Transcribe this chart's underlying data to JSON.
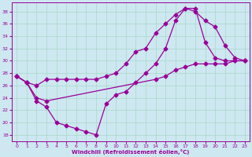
{
  "xlabel": "Windchill (Refroidissement éolien,°C)",
  "bg_color": "#cde8f0",
  "line_color": "#990099",
  "marker": "D",
  "markersize": 2.5,
  "linewidth": 0.9,
  "xlim": [
    -0.5,
    23.5
  ],
  "ylim": [
    17.0,
    39.5
  ],
  "xticks": [
    0,
    1,
    2,
    3,
    4,
    5,
    6,
    7,
    8,
    9,
    10,
    11,
    12,
    13,
    14,
    15,
    16,
    17,
    18,
    19,
    20,
    21,
    22,
    23
  ],
  "yticks": [
    18,
    20,
    22,
    24,
    26,
    28,
    30,
    32,
    34,
    36,
    38
  ],
  "grid_color": "#a8d8c8",
  "lines": [
    {
      "x": [
        0,
        1,
        2,
        3,
        4,
        5,
        6,
        7,
        8,
        9,
        10,
        11,
        12,
        13,
        14,
        15,
        16,
        17,
        18,
        19,
        20,
        21,
        22,
        23
      ],
      "y": [
        27.5,
        26.5,
        26.0,
        27.0,
        27.0,
        27.0,
        27.0,
        27.0,
        27.0,
        27.5,
        28.0,
        29.5,
        31.5,
        32.0,
        34.5,
        36.0,
        37.5,
        38.5,
        38.0,
        36.5,
        35.5,
        32.5,
        30.5,
        30.0
      ]
    },
    {
      "x": [
        0,
        1,
        2,
        3,
        4,
        5,
        6,
        7,
        8,
        9,
        10,
        11,
        12,
        13,
        14,
        15,
        16,
        17,
        18,
        19,
        20,
        21,
        22,
        23
      ],
      "y": [
        27.5,
        26.5,
        23.5,
        22.5,
        20.0,
        19.5,
        19.0,
        18.5,
        18.0,
        23.0,
        24.5,
        25.0,
        26.5,
        28.0,
        29.5,
        32.0,
        36.5,
        38.5,
        38.5,
        33.0,
        30.5,
        30.0,
        30.0,
        30.0
      ]
    },
    {
      "x": [
        0,
        1,
        2,
        3,
        14,
        15,
        16,
        17,
        18,
        19,
        20,
        21,
        22,
        23
      ],
      "y": [
        27.5,
        26.5,
        24.0,
        23.5,
        27.0,
        27.5,
        28.5,
        29.0,
        29.5,
        29.5,
        29.5,
        29.5,
        30.0,
        30.0
      ]
    }
  ]
}
